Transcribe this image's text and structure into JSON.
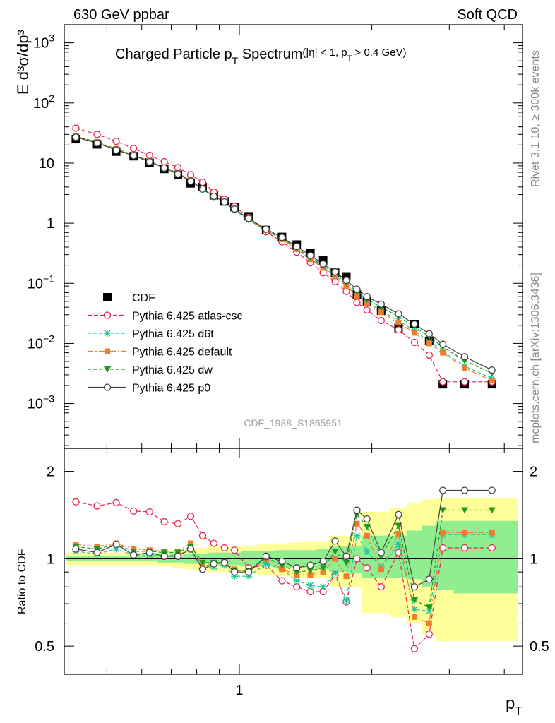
{
  "header": {
    "left": "630 GeV ppbar",
    "right": "Soft QCD"
  },
  "side_labels": {
    "rivet": "Rivet 3.1.10, ≥ 300k events",
    "mcplots": "mcplots.cern.ch [arXiv:1306.3436]"
  },
  "analysis_id": "CDF_1988_S1865951",
  "colors": {
    "cdf": "#000000",
    "atlas_csc": "#e8254e",
    "d6t": "#1fc7a0",
    "default": "#f07c2c",
    "dw": "#1e9a1e",
    "p0": "#444444",
    "band_yellow": "#ffff99",
    "band_green": "#90ee90"
  },
  "chart_data": [
    {
      "type": "scatter",
      "title_main": "Charged Particle p",
      "title_sub": "T",
      "title_main2": " Spectrum",
      "title_extra": "(|η| < 1, p",
      "title_extra_sub": "T",
      "title_extra2": " > 0.4 GeV)",
      "ylabel": "E d³σ/dp³",
      "y_scale": "log",
      "x_scale": "log",
      "xlim": [
        0.4,
        4.4
      ],
      "ylim": [
        0.00018,
        2000
      ],
      "y_ticks": [
        {
          "v": 1000,
          "base": "10",
          "exp": "3"
        },
        {
          "v": 100,
          "base": "10",
          "exp": "2"
        },
        {
          "v": 10,
          "base": "10",
          "exp": ""
        },
        {
          "v": 1,
          "base": "1",
          "exp": ""
        },
        {
          "v": 0.1,
          "base": "10",
          "exp": "−1"
        },
        {
          "v": 0.01,
          "base": "10",
          "exp": "−2"
        },
        {
          "v": 0.001,
          "base": "10",
          "exp": "−3"
        }
      ],
      "x": [
        0.425,
        0.475,
        0.525,
        0.575,
        0.625,
        0.675,
        0.725,
        0.775,
        0.825,
        0.875,
        0.925,
        0.975,
        1.05,
        1.15,
        1.25,
        1.35,
        1.45,
        1.55,
        1.65,
        1.75,
        1.85,
        1.95,
        2.1,
        2.3,
        2.5,
        2.7,
        2.9,
        3.25,
        3.75
      ],
      "legend_position": "middle-left",
      "series": [
        {
          "key": "cdf",
          "name": "CDF",
          "marker": "square",
          "values": [
            25,
            20.5,
            15.5,
            13,
            10.2,
            8,
            6.4,
            4.6,
            4.0,
            2.9,
            2.3,
            1.85,
            1.3,
            0.77,
            0.59,
            0.44,
            0.32,
            0.24,
            0.15,
            0.13,
            0.065,
            0.05,
            0.035,
            0.018,
            0.021,
            0.011,
            0.0021,
            0.0021,
            0.0021
          ]
        },
        {
          "key": "atlas_csc",
          "name": "Pythia 6.425 atlas-csc",
          "marker": "open-circle",
          "dash": "6,3",
          "values": [
            38,
            30,
            23,
            17.5,
            13.5,
            10.5,
            8.4,
            6.4,
            4.8,
            3.3,
            2.5,
            1.9,
            1.25,
            0.72,
            0.49,
            0.33,
            0.22,
            0.15,
            0.107,
            0.073,
            0.048,
            0.036,
            0.024,
            0.0168,
            0.0104,
            0.0064,
            0.0023,
            0.0023,
            0.0023
          ]
        },
        {
          "key": "d6t",
          "name": "Pythia 6.425 d6t",
          "marker": "star",
          "dash": "5,3",
          "values": [
            27,
            21.5,
            16.5,
            13.3,
            10.5,
            8.3,
            6.6,
            5.0,
            3.65,
            2.75,
            2.2,
            1.65,
            1.13,
            0.75,
            0.54,
            0.37,
            0.26,
            0.185,
            0.135,
            0.094,
            0.067,
            0.048,
            0.035,
            0.024,
            0.0163,
            0.0108,
            0.0074,
            0.0042,
            0.0026
          ]
        },
        {
          "key": "default",
          "name": "Pythia 6.425 default",
          "marker": "square-small",
          "dash": "8,3,2,3",
          "values": [
            28,
            22.5,
            17.3,
            13.8,
            10.8,
            8.5,
            6.8,
            5.2,
            3.75,
            2.8,
            2.25,
            1.7,
            1.17,
            0.77,
            0.54,
            0.37,
            0.25,
            0.18,
            0.13,
            0.09,
            0.062,
            0.046,
            0.033,
            0.022,
            0.015,
            0.01,
            0.007,
            0.0039,
            0.0024
          ]
        },
        {
          "key": "dw",
          "name": "Pythia 6.425 dw",
          "marker": "triangle-down",
          "dash": "5,3",
          "values": [
            27.5,
            22,
            16.8,
            13.5,
            10.6,
            8.4,
            6.7,
            5.1,
            3.7,
            2.8,
            2.25,
            1.7,
            1.18,
            0.78,
            0.56,
            0.39,
            0.27,
            0.195,
            0.145,
            0.103,
            0.073,
            0.054,
            0.04,
            0.028,
            0.019,
            0.013,
            0.0087,
            0.0052,
            0.0032
          ]
        },
        {
          "key": "p0",
          "name": "Pythia 6.425 p0",
          "marker": "open-circle",
          "dash": "",
          "values": [
            27,
            21.5,
            16.5,
            13.3,
            10.5,
            8.3,
            6.6,
            5.0,
            3.7,
            2.8,
            2.25,
            1.72,
            1.2,
            0.8,
            0.58,
            0.41,
            0.29,
            0.21,
            0.155,
            0.112,
            0.08,
            0.06,
            0.045,
            0.031,
            0.021,
            0.0145,
            0.0097,
            0.006,
            0.0036
          ]
        }
      ]
    },
    {
      "type": "line",
      "ylabel": "Ratio to CDF",
      "xlabel_main": "p",
      "xlabel_sub": "T",
      "y_scale": "log",
      "x_scale": "log",
      "xlim": [
        0.4,
        4.4
      ],
      "ylim": [
        0.4,
        2.4
      ],
      "y_ticks": [
        0.5,
        1,
        2
      ],
      "x_ticks": [
        1
      ],
      "x_tick_labels": [
        "1"
      ],
      "band_outer": {
        "lo": [
          0.95,
          0.95,
          0.95,
          0.95,
          0.95,
          0.94,
          0.93,
          0.92,
          0.91,
          0.9,
          0.9,
          0.9,
          0.89,
          0.88,
          0.87,
          0.86,
          0.86,
          0.86,
          0.8,
          0.8,
          0.8,
          0.65,
          0.65,
          0.63,
          0.6,
          0.55,
          0.52,
          0.52,
          0.52
        ],
        "hi": [
          1.05,
          1.05,
          1.05,
          1.05,
          1.05,
          1.06,
          1.07,
          1.08,
          1.09,
          1.1,
          1.1,
          1.1,
          1.11,
          1.12,
          1.13,
          1.14,
          1.15,
          1.15,
          1.2,
          1.2,
          1.2,
          1.45,
          1.45,
          1.5,
          1.55,
          1.6,
          1.62,
          1.62,
          1.62
        ]
      },
      "band_inner": {
        "lo": [
          0.98,
          0.98,
          0.98,
          0.98,
          0.98,
          0.97,
          0.97,
          0.96,
          0.96,
          0.95,
          0.95,
          0.95,
          0.94,
          0.94,
          0.93,
          0.93,
          0.93,
          0.92,
          0.9,
          0.9,
          0.89,
          0.86,
          0.86,
          0.86,
          0.85,
          0.8,
          0.78,
          0.76,
          0.76
        ],
        "hi": [
          1.02,
          1.02,
          1.02,
          1.02,
          1.02,
          1.03,
          1.03,
          1.04,
          1.04,
          1.05,
          1.05,
          1.05,
          1.06,
          1.06,
          1.07,
          1.07,
          1.07,
          1.08,
          1.1,
          1.1,
          1.11,
          1.2,
          1.2,
          1.2,
          1.25,
          1.3,
          1.35,
          1.35,
          1.35
        ]
      },
      "series": [
        {
          "key": "atlas_csc",
          "values": [
            1.57,
            1.52,
            1.56,
            1.46,
            1.45,
            1.34,
            1.32,
            1.4,
            1.2,
            1.13,
            1.09,
            1.07,
            0.93,
            0.95,
            0.84,
            0.8,
            0.77,
            0.77,
            0.88,
            0.71,
            1.0,
            0.93,
            0.8,
            1.05,
            0.49,
            0.55,
            1.09,
            1.09,
            1.09
          ]
        },
        {
          "key": "d6t",
          "values": [
            1.06,
            1.04,
            1.08,
            1.03,
            1.03,
            1.03,
            1.03,
            1.08,
            0.92,
            0.94,
            0.95,
            0.87,
            0.87,
            0.96,
            0.92,
            0.84,
            0.81,
            0.8,
            0.89,
            0.72,
            1.2,
            1.06,
            0.94,
            1.12,
            0.67,
            0.66,
            1.21,
            1.21,
            1.21
          ]
        },
        {
          "key": "default",
          "values": [
            1.12,
            1.1,
            1.13,
            1.08,
            1.07,
            1.06,
            1.06,
            1.13,
            0.94,
            0.96,
            0.97,
            0.92,
            0.9,
            1.0,
            0.92,
            0.88,
            0.88,
            0.9,
            1.0,
            0.87,
            1.32,
            1.2,
            0.92,
            1.22,
            0.63,
            0.6,
            1.23,
            1.23,
            1.23
          ]
        },
        {
          "key": "dw",
          "values": [
            1.1,
            1.08,
            1.12,
            1.06,
            1.06,
            1.05,
            1.05,
            1.1,
            0.97,
            0.97,
            0.97,
            0.91,
            0.91,
            1.01,
            0.95,
            0.9,
            0.91,
            0.93,
            1.06,
            0.97,
            1.42,
            1.29,
            1.02,
            1.3,
            0.72,
            0.68,
            1.47,
            1.47,
            1.47
          ]
        },
        {
          "key": "p0",
          "values": [
            1.08,
            1.05,
            1.12,
            1.03,
            1.05,
            1.02,
            1.02,
            1.08,
            0.92,
            0.96,
            0.97,
            0.9,
            0.9,
            1.02,
            0.98,
            0.93,
            0.95,
            0.98,
            1.15,
            1.02,
            1.47,
            1.37,
            1.05,
            1.42,
            0.8,
            0.85,
            1.72,
            1.72,
            1.72
          ]
        }
      ]
    }
  ]
}
